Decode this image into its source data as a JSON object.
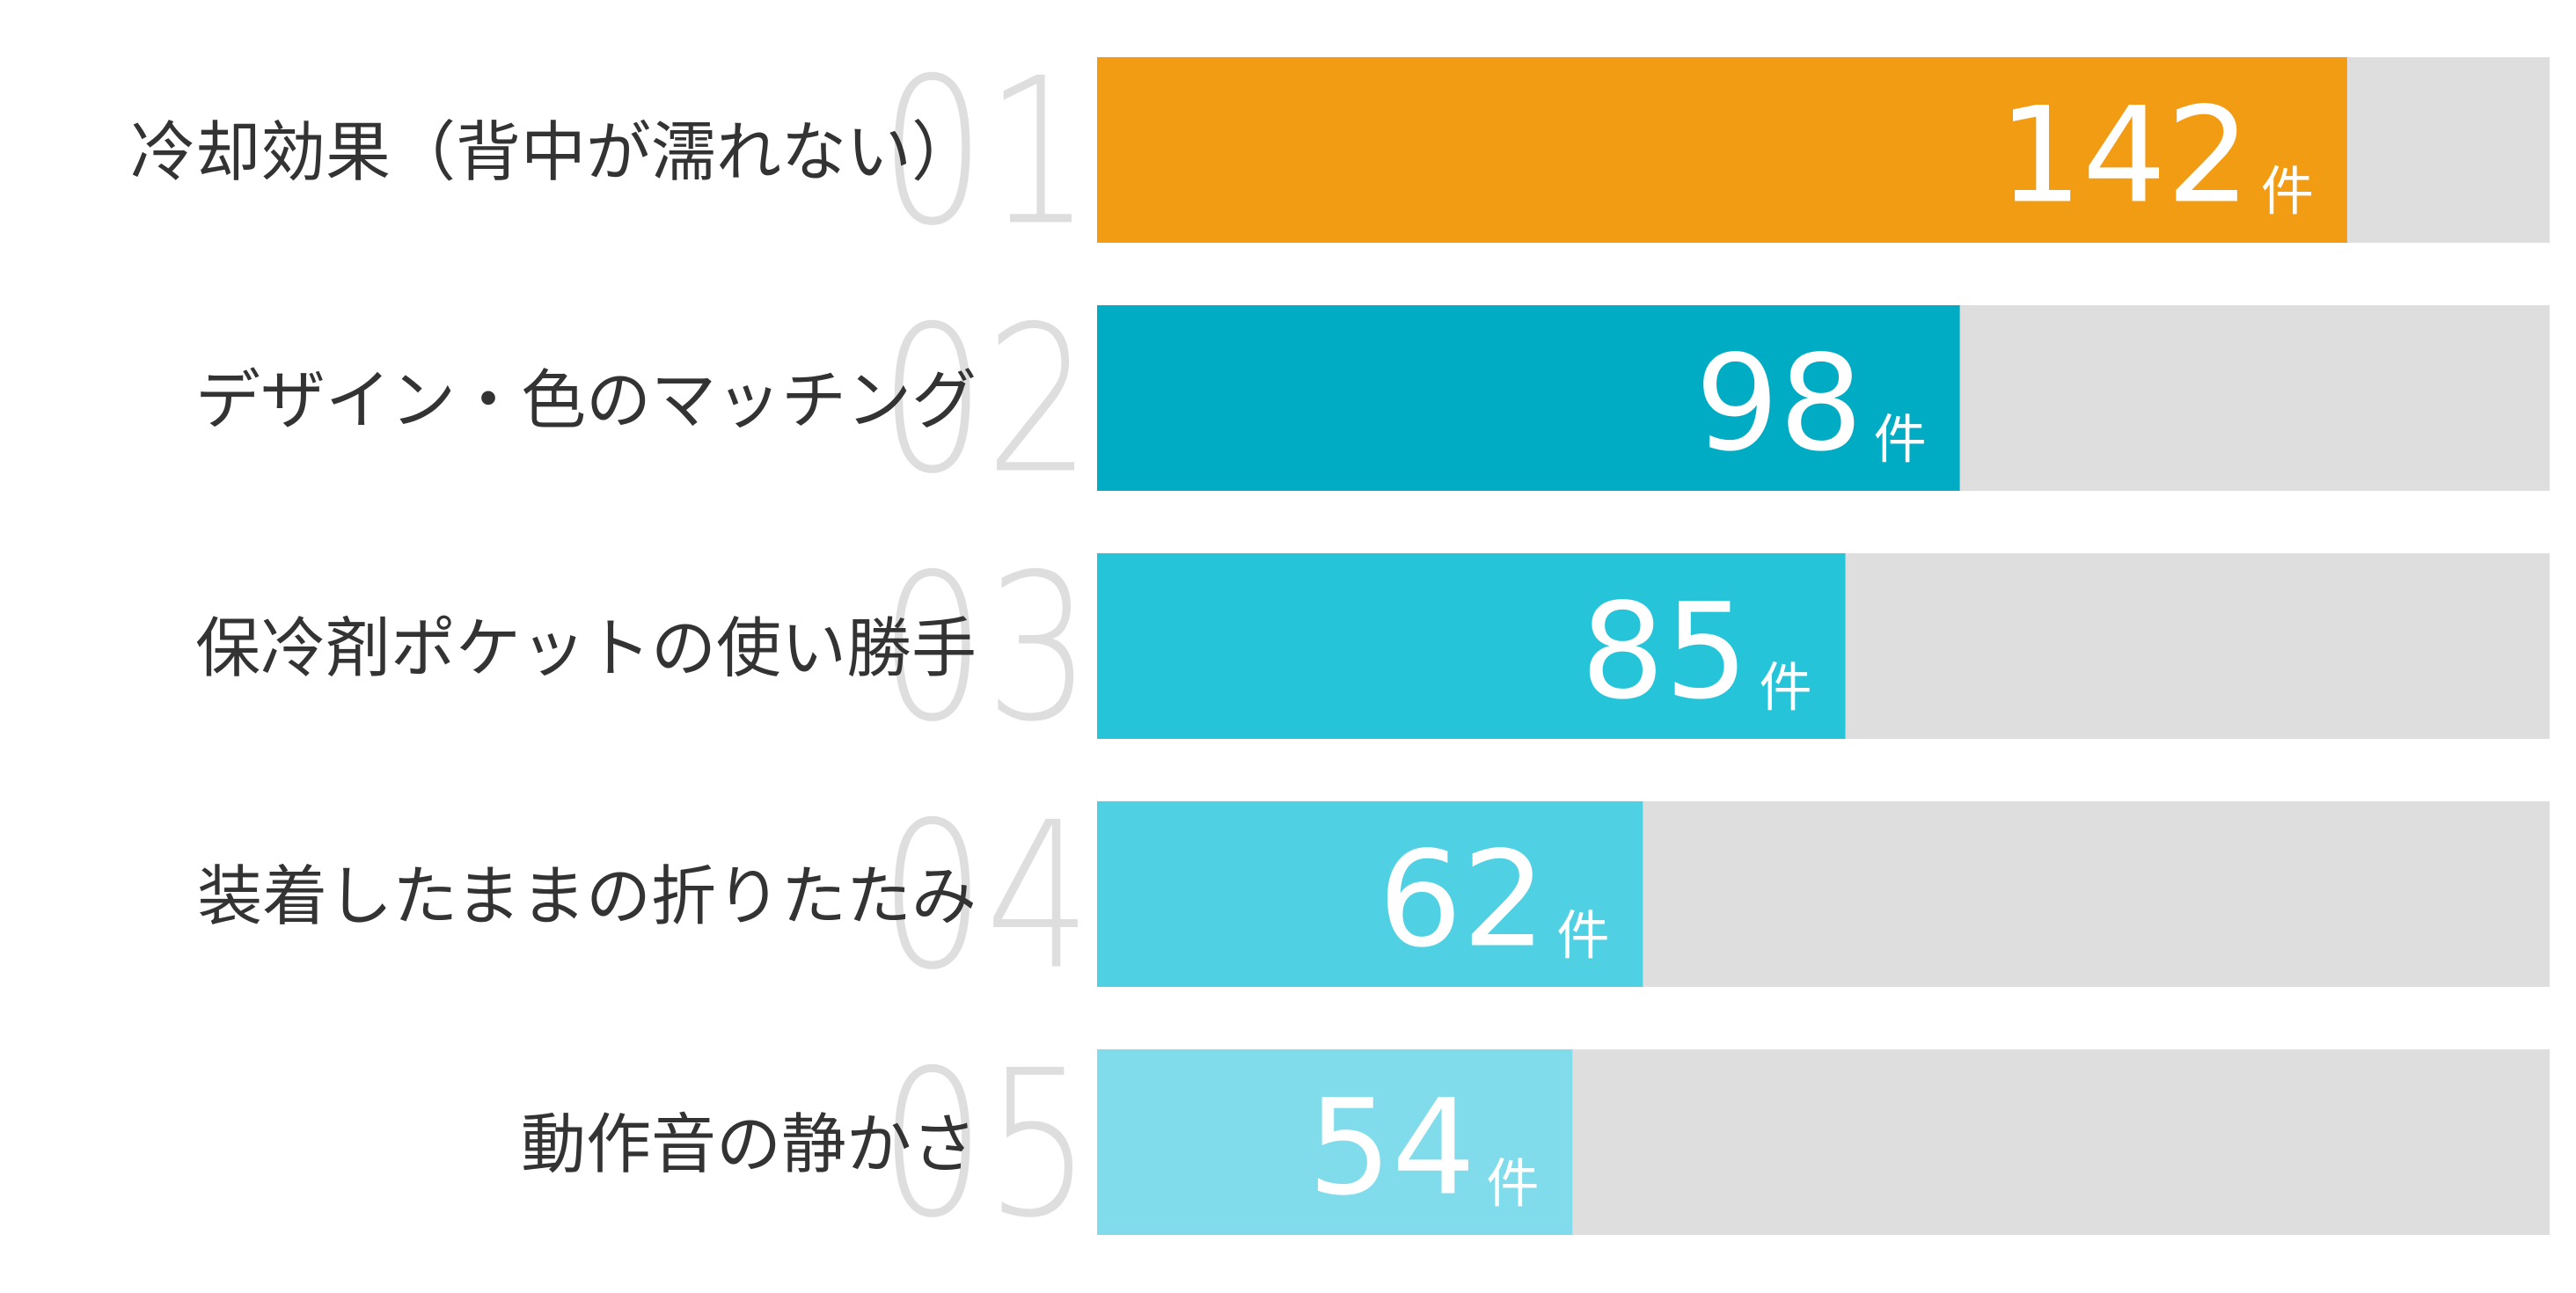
{
  "chart_data": {
    "type": "bar",
    "orientation": "horizontal",
    "categories": [
      "冷却効果（背中が濡れない）",
      "デザイン・色のマッチング",
      "保冷剤ポケットの使い勝手",
      "装着したままの折りたたみ",
      "動作音の静かさ"
    ],
    "ranks": [
      "01",
      "02",
      "03",
      "04",
      "05"
    ],
    "values": [
      142,
      98,
      85,
      62,
      54
    ],
    "unit": "件",
    "xlim": [
      0,
      165
    ],
    "bar_colors": [
      "#f29c14",
      "#00acc4",
      "#26c4d9",
      "#4fd1e3",
      "#80dceb"
    ],
    "track_color": "#dedede",
    "rank_color": "#dedede",
    "label_color": "#333333",
    "value_label_color": "#ffffff",
    "grid": false,
    "legend": "none"
  }
}
